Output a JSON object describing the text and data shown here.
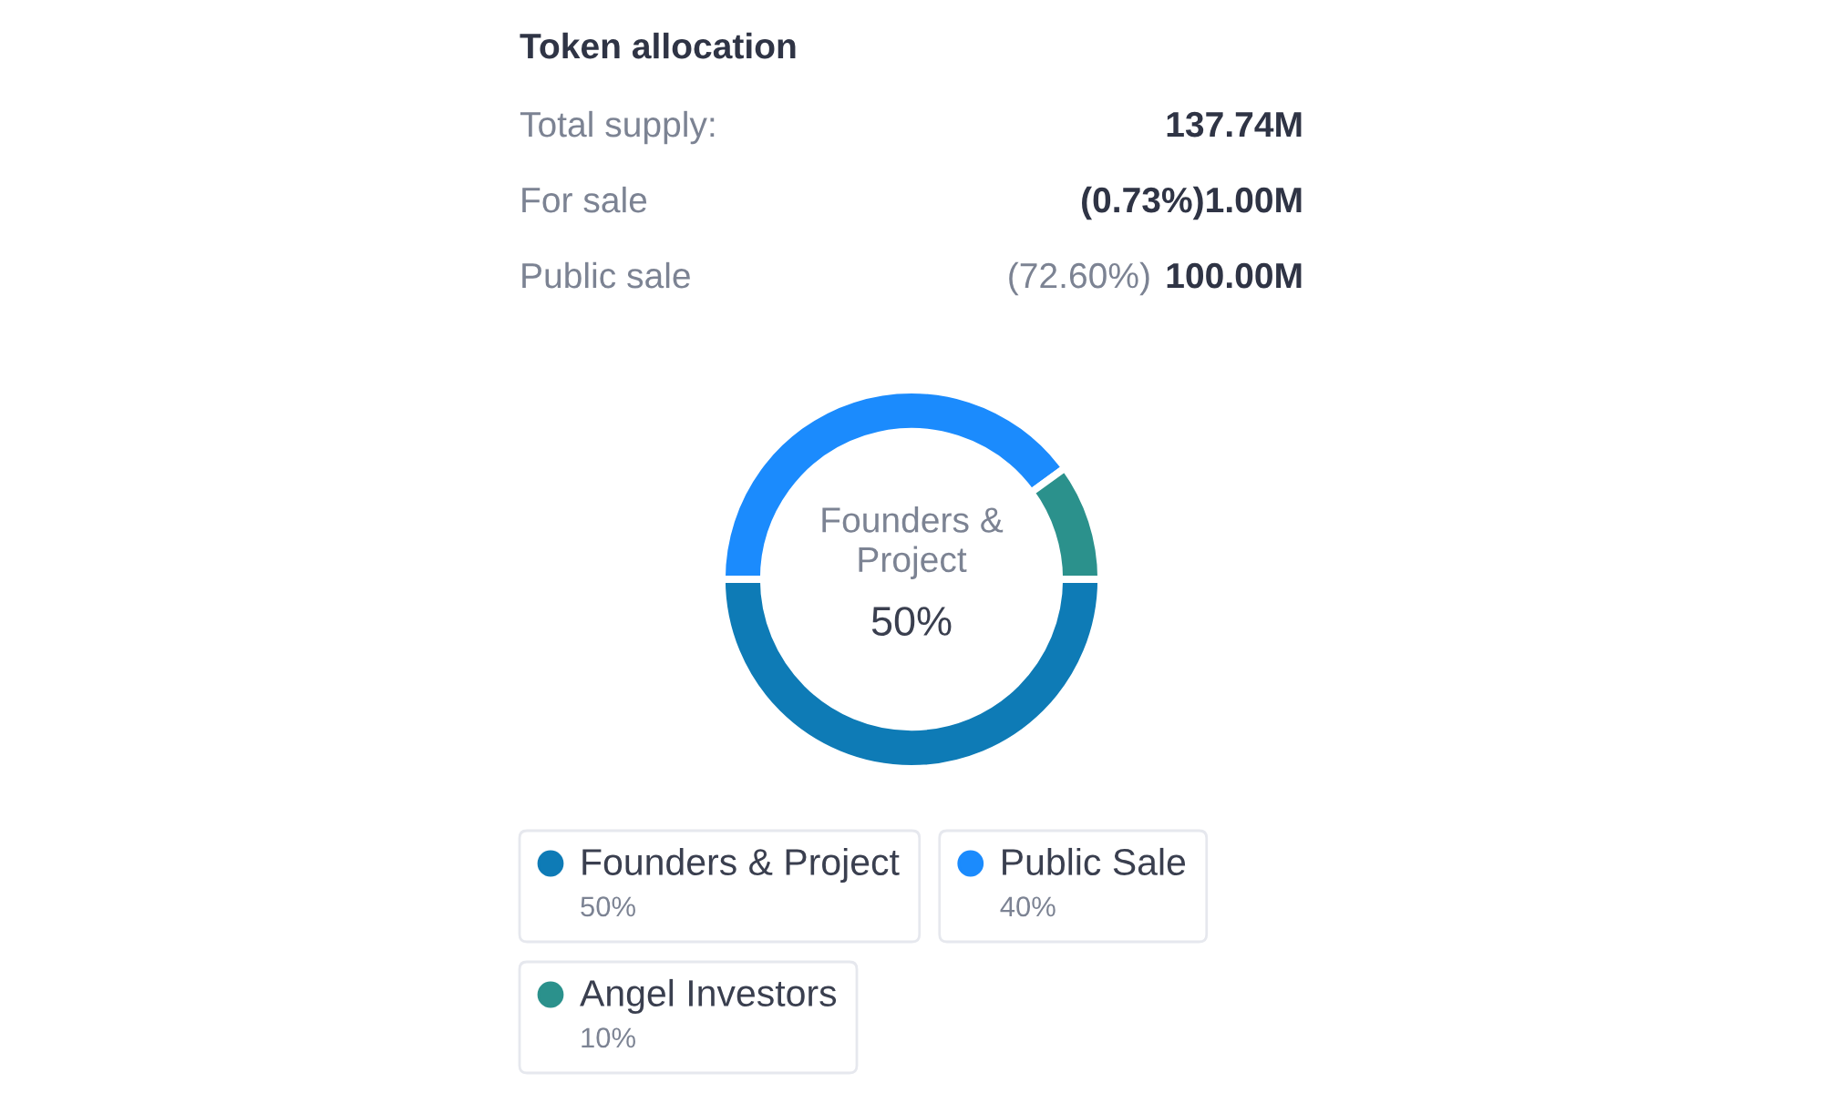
{
  "chart_data": {
    "type": "donut",
    "title": "Token allocation",
    "categories": [
      "Founders & Project",
      "Public Sale",
      "Angel Investors"
    ],
    "values": [
      50,
      40,
      10
    ],
    "colors": [
      "#0e7bb6",
      "#1b8bfd",
      "#2b918c"
    ],
    "value_labels": [
      "50%",
      "40%",
      "10%"
    ],
    "legend": "bottom",
    "annotations": [
      "Total supply:",
      "137.74M",
      "For sale",
      "(0.73%)1.00M",
      "Public sale",
      "(72.60%)",
      "100.00M"
    ]
  }
}
